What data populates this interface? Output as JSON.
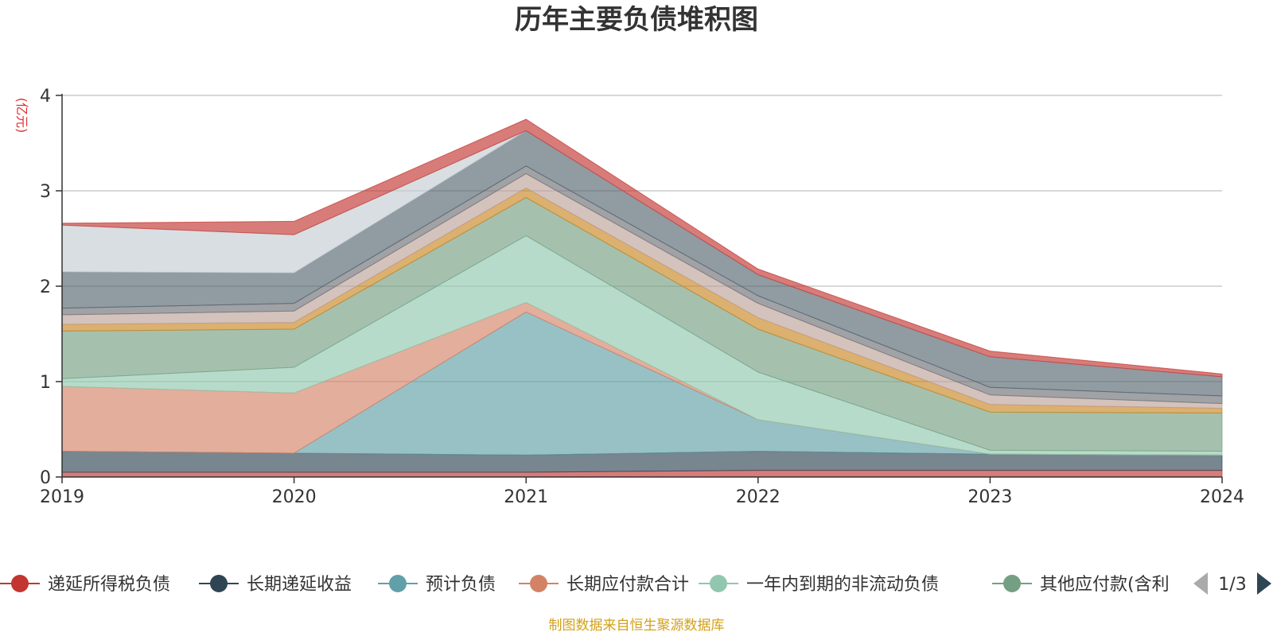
{
  "chart_data": {
    "type": "area",
    "stacked": true,
    "title": "历年主要负债堆积图",
    "ylabel": "(亿元)",
    "x": [
      "2019",
      "2020",
      "2021",
      "2022",
      "2023",
      "2024"
    ],
    "ylim": [
      0,
      4
    ],
    "yticks": [
      "0",
      "1",
      "2",
      "3",
      "4"
    ],
    "grid": true,
    "series": [
      {
        "name": "递延所得税负债",
        "color": "#c23531",
        "values": [
          0.05,
          0.05,
          0.05,
          0.07,
          0.07,
          0.07
        ]
      },
      {
        "name": "长期递延收益",
        "color": "#2f4554",
        "values": [
          0.22,
          0.2,
          0.18,
          0.2,
          0.17,
          0.16
        ]
      },
      {
        "name": "预计负债",
        "color": "#61a0a8",
        "values": [
          0.0,
          0.0,
          1.5,
          0.33,
          0.0,
          0.0
        ]
      },
      {
        "name": "长期应付款合计",
        "color": "#d48265",
        "values": [
          0.68,
          0.63,
          0.1,
          0.0,
          0.0,
          0.0
        ]
      },
      {
        "name": "一年内到期的非流动负债",
        "color": "#91c7ae",
        "values": [
          0.08,
          0.27,
          0.7,
          0.5,
          0.04,
          0.04
        ]
      },
      {
        "name": "其他应付款(含利",
        "color": "#749f83",
        "values": [
          0.5,
          0.4,
          0.4,
          0.45,
          0.4,
          0.4
        ]
      },
      {
        "name": "",
        "color": "#ca8622",
        "values": [
          0.07,
          0.07,
          0.1,
          0.12,
          0.08,
          0.05
        ]
      },
      {
        "name": "",
        "color": "#bda29a",
        "values": [
          0.1,
          0.12,
          0.15,
          0.15,
          0.1,
          0.05
        ]
      },
      {
        "name": "",
        "color": "#6e7074",
        "values": [
          0.07,
          0.08,
          0.08,
          0.08,
          0.08,
          0.08
        ]
      },
      {
        "name": "",
        "color": "#546570",
        "values": [
          0.38,
          0.32,
          0.37,
          0.22,
          0.32,
          0.2
        ]
      },
      {
        "name": "",
        "color": "#c4ccd3",
        "values": [
          0.49,
          0.4,
          0.0,
          0.0,
          0.0,
          0.0
        ]
      },
      {
        "name": "",
        "color": "#c23531",
        "values": [
          0.02,
          0.14,
          0.12,
          0.06,
          0.06,
          0.03
        ]
      }
    ]
  },
  "legend": {
    "page": "1/3",
    "prev_icon": "triangle-left-icon",
    "next_icon": "triangle-right-icon"
  },
  "source": "制图数据来自恒生聚源数据库"
}
